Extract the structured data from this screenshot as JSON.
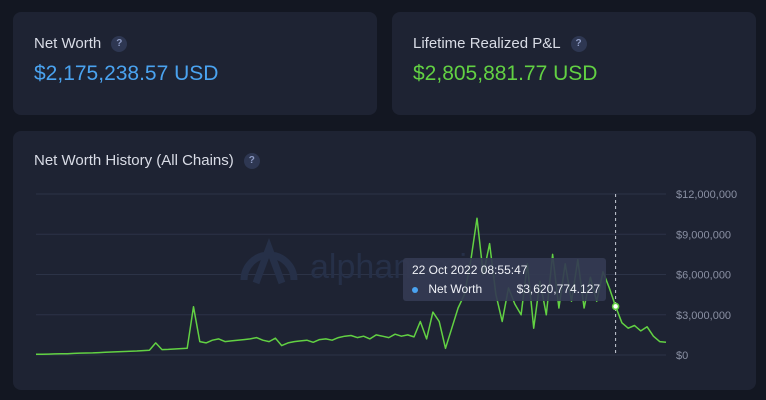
{
  "cards": {
    "net_worth": {
      "label": "Net Worth",
      "value": "$2,175,238.57 USD",
      "color": "#4aa3f0"
    },
    "lifetime_pnl": {
      "label": "Lifetime Realized P&L",
      "value": "$2,805,881.77 USD",
      "color": "#62d143"
    }
  },
  "help_glyph": "?",
  "chart_card": {
    "title": "Net Worth History (All Chains)"
  },
  "watermark": "alphanomics",
  "tooltip": {
    "date": "22 Oct 2022 08:55:47",
    "series_label": "Net Worth",
    "value": "$3,620,774.127"
  },
  "chart_data": {
    "type": "line",
    "title": "Net Worth History (All Chains)",
    "xlabel": "",
    "ylabel": "",
    "ylim": [
      0,
      12000000
    ],
    "y_ticks": [
      "$12,000,000",
      "$9,000,000",
      "$6,000,000",
      "$3,000,000",
      "$0"
    ],
    "y_tick_values": [
      12000000,
      9000000,
      6000000,
      3000000,
      0
    ],
    "grid": true,
    "line_color": "#62d143",
    "x": [
      0,
      1,
      2,
      3,
      4,
      5,
      6,
      7,
      8,
      9,
      10,
      11,
      12,
      13,
      14,
      15,
      16,
      17,
      18,
      19,
      20,
      21,
      22,
      23,
      24,
      25,
      26,
      27,
      28,
      29,
      30,
      31,
      32,
      33,
      34,
      35,
      36,
      37,
      38,
      39,
      40,
      41,
      42,
      43,
      44,
      45,
      46,
      47,
      48,
      49,
      50,
      51,
      52,
      53,
      54,
      55,
      56,
      57,
      58,
      59,
      60,
      61,
      62,
      63,
      64,
      65,
      66,
      67,
      68,
      69,
      70,
      71,
      72,
      73,
      74,
      75,
      76,
      77,
      78,
      79,
      80,
      81,
      82,
      83,
      84,
      85,
      86,
      87,
      88,
      89,
      90,
      91,
      92,
      93,
      94,
      95,
      96,
      97,
      98,
      99,
      100
    ],
    "series": [
      {
        "values": [
          50000,
          60000,
          70000,
          80000,
          90000,
          100000,
          120000,
          140000,
          150000,
          160000,
          180000,
          200000,
          220000,
          240000,
          260000,
          280000,
          300000,
          330000,
          360000,
          900000,
          400000,
          420000,
          450000,
          480000,
          500000,
          3600000,
          1000000,
          900000,
          1100000,
          1200000,
          1000000,
          1050000,
          1100000,
          1150000,
          1200000,
          1300000,
          1100000,
          1000000,
          1250000,
          700000,
          900000,
          1000000,
          1050000,
          1100000,
          950000,
          1150000,
          1200000,
          1100000,
          1300000,
          1400000,
          1450000,
          1300000,
          1400000,
          1200000,
          1500000,
          1400000,
          1300000,
          1550000,
          1400000,
          1500000,
          1350000,
          2500000,
          1200000,
          3200000,
          2500000,
          500000,
          2000000,
          3500000,
          4500000,
          7000000,
          10200000,
          6000000,
          8300000,
          4500000,
          2500000,
          5000000,
          3800000,
          3000000,
          6800000,
          2000000,
          5500000,
          3000000,
          7500000,
          3500000,
          6800000,
          4000000,
          7100000,
          3500000,
          5800000,
          4000000,
          6200000,
          5000000,
          3620000,
          2400000,
          2000000,
          2200000,
          1800000,
          2100000,
          1400000,
          1000000,
          950000
        ]
      }
    ],
    "highlight_index": 92
  }
}
